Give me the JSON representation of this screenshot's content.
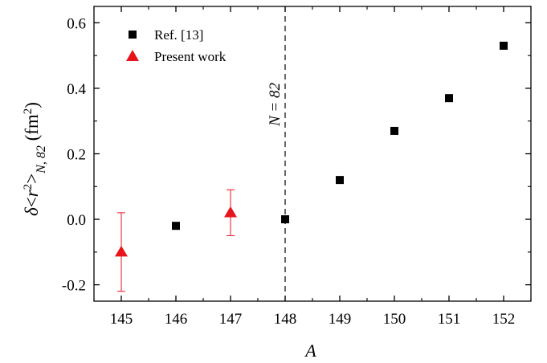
{
  "chart_data": {
    "type": "scatter",
    "xlabel": "A",
    "ylabel": "δ<r²>N, 82 (fm²)",
    "ylabel_parts": {
      "delta": "δ",
      "lt": "<",
      "r": "r",
      "sq": "2",
      "gt": ">",
      "sub": "N, 82",
      "unit_open": " (fm",
      "unit_sq": "2",
      "unit_close": ")"
    },
    "xlim": [
      144.5,
      152.5
    ],
    "ylim": [
      -0.25,
      0.65
    ],
    "xticks": [
      145,
      146,
      147,
      148,
      149,
      150,
      151,
      152
    ],
    "yticks": [
      -0.2,
      0.0,
      0.2,
      0.4,
      0.6
    ],
    "ytick_labels": [
      "-0.2",
      "0.0",
      "0.2",
      "0.4",
      "0.6"
    ],
    "grid": false,
    "legend_position": "top-left",
    "series": [
      {
        "name": "Ref. [13]",
        "marker": "square",
        "color": "#000000",
        "x": [
          146,
          148,
          149,
          150,
          151,
          152
        ],
        "y": [
          -0.02,
          0.0,
          0.12,
          0.27,
          0.37,
          0.53
        ]
      },
      {
        "name": "Present work",
        "marker": "triangle",
        "color": "#e8141b",
        "x": [
          145,
          147
        ],
        "y": [
          -0.1,
          0.02
        ],
        "yerr": [
          0.12,
          0.07
        ]
      }
    ],
    "annotations": [
      {
        "text": "N = 82",
        "x": 148,
        "style": "dashed-vertical-line"
      }
    ]
  }
}
